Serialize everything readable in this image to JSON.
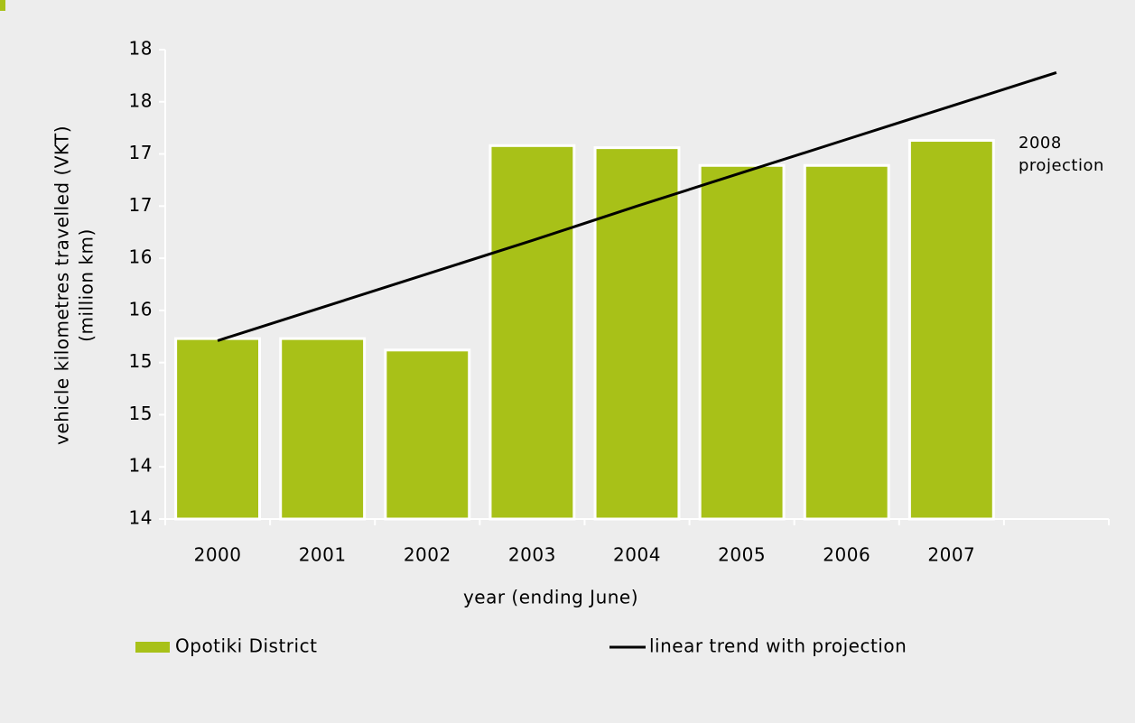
{
  "chart_data": {
    "type": "bar",
    "categories": [
      "2000",
      "2001",
      "2002",
      "2003",
      "2004",
      "2005",
      "2006",
      "2007",
      null
    ],
    "series": [
      {
        "name": "Opotiki District",
        "type": "bar",
        "color": "#a8c118",
        "values": [
          15.53,
          15.53,
          15.42,
          17.38,
          17.36,
          17.19,
          17.19,
          17.43,
          null
        ]
      },
      {
        "name": "linear trend with projection",
        "type": "line",
        "color": "#000000",
        "values": [
          15.51,
          15.83,
          16.15,
          16.47,
          16.8,
          17.12,
          17.44,
          17.76,
          18.08
        ]
      }
    ],
    "ylim": [
      13.8,
      18.3
    ],
    "yticks": [
      {
        "value": 13.8,
        "label": "14"
      },
      {
        "value": 14.3,
        "label": "14"
      },
      {
        "value": 14.8,
        "label": "15"
      },
      {
        "value": 15.3,
        "label": "15"
      },
      {
        "value": 15.8,
        "label": "16"
      },
      {
        "value": 16.3,
        "label": "16"
      },
      {
        "value": 16.8,
        "label": "17"
      },
      {
        "value": 17.3,
        "label": "17"
      },
      {
        "value": 17.8,
        "label": "18"
      },
      {
        "value": 18.3,
        "label": "18"
      }
    ],
    "xlabel": "year (ending June)",
    "ylabel": [
      "vehicle kilometres travelled (VKT)",
      "(million km)"
    ],
    "annotation": [
      "2008",
      "projection"
    ],
    "grid": false,
    "legend": "bottom"
  }
}
